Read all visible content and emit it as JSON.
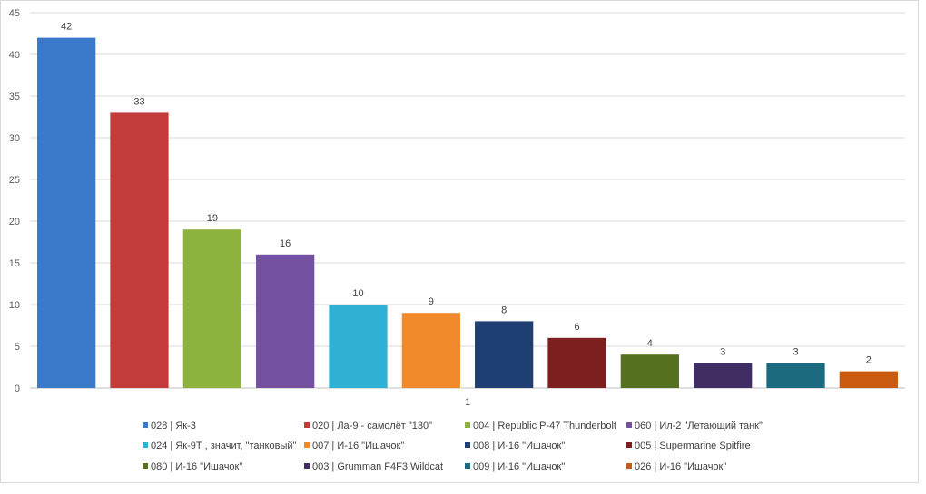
{
  "chart_data": {
    "type": "bar",
    "categories": [
      "1"
    ],
    "ylim": [
      0,
      45
    ],
    "yticks": [
      0,
      5,
      10,
      15,
      20,
      25,
      30,
      35,
      40,
      45
    ],
    "grid": true,
    "legend_position": "bottom",
    "series": [
      {
        "name": "028 | Як-3",
        "values": [
          42
        ],
        "color": "#3a78c9"
      },
      {
        "name": "020 | Ла-9 - самолёт \"130\"",
        "values": [
          33
        ],
        "color": "#c43c3a"
      },
      {
        "name": "004 | Republic P-47 Thunderbolt",
        "values": [
          19
        ],
        "color": "#8db33e"
      },
      {
        "name": "060 | Ил-2 \"Летающий танк\"",
        "values": [
          16
        ],
        "color": "#7350a0"
      },
      {
        "name": "024 | Як-9Т , значит, \"танковый\"",
        "values": [
          10
        ],
        "color": "#2fb1d3"
      },
      {
        "name": "007 | И-16 \"Ишачок\"",
        "values": [
          9
        ],
        "color": "#f08a2c"
      },
      {
        "name": "008 | И-16 \"Ишачок\"",
        "values": [
          8
        ],
        "color": "#1f3f73"
      },
      {
        "name": "005 | Supermarine Spitfire",
        "values": [
          6
        ],
        "color": "#7e1f1f"
      },
      {
        "name": "080 | И-16 \"Ишачок\"",
        "values": [
          4
        ],
        "color": "#55701f"
      },
      {
        "name": "003 | Grumman F4F3 Wildcat",
        "values": [
          3
        ],
        "color": "#3f2d63"
      },
      {
        "name": "009 | И-16 \"Ишачок\"",
        "values": [
          3
        ],
        "color": "#1c6a80"
      },
      {
        "name": "026 | И-16 \"Ишачок\"",
        "values": [
          2
        ],
        "color": "#c95a10"
      }
    ]
  }
}
